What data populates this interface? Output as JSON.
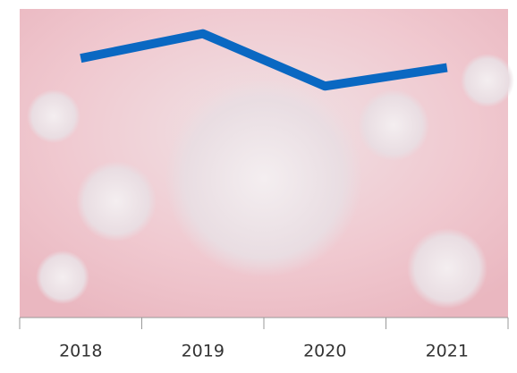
{
  "chart_data": {
    "type": "line",
    "categories": [
      "2018",
      "2019",
      "2020",
      "2021"
    ],
    "series": [
      {
        "name": null,
        "color": "#0a68c2",
        "values": [
          84,
          92,
          75,
          81
        ]
      }
    ],
    "ylim": [
      0,
      100
    ]
  }
}
